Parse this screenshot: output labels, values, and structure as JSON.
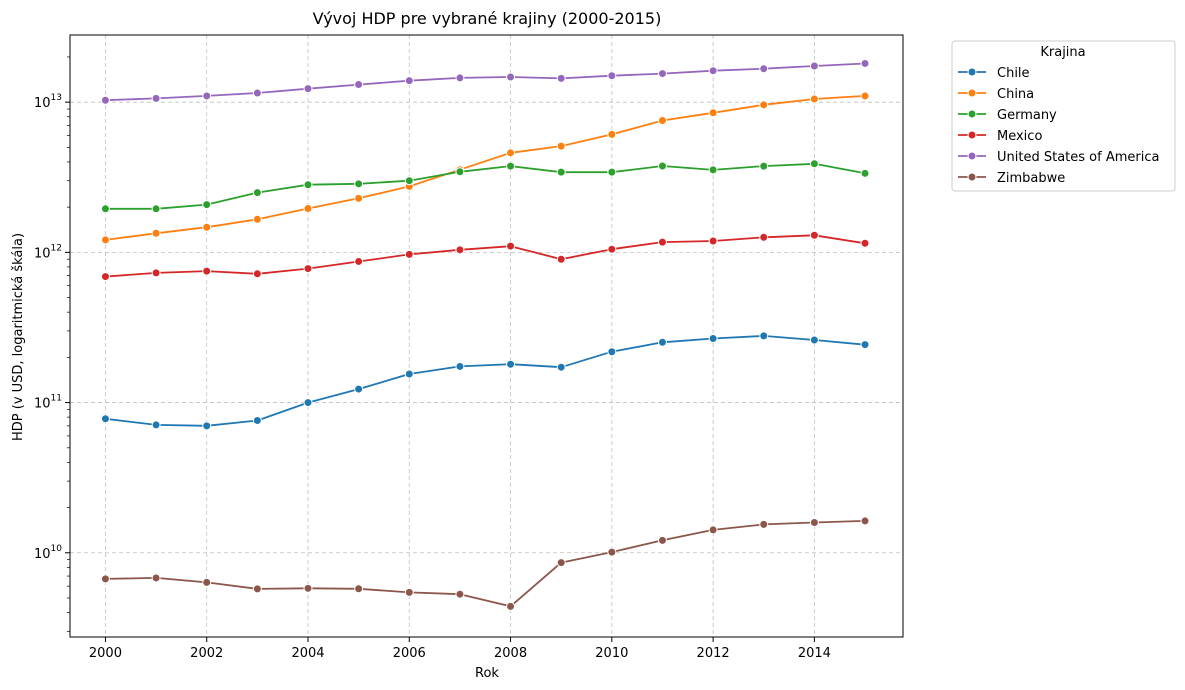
{
  "chart_data": {
    "type": "line",
    "title": "Vývoj HDP pre vybrané krajiny (2000-2015)",
    "xlabel": "Rok",
    "ylabel": "HDP (v USD, logaritmická škála)",
    "yscale": "log",
    "xlim": [
      1999.3,
      2015.75
    ],
    "ylim": [
      2750000000.0,
      28000000000000.0
    ],
    "grid": true,
    "x_ticks": [
      2000,
      2002,
      2004,
      2006,
      2008,
      2010,
      2012,
      2014
    ],
    "x_tick_labels": [
      "2000",
      "2002",
      "2004",
      "2006",
      "2008",
      "2010",
      "2012",
      "2014"
    ],
    "y_ticks": [
      10000000000.0,
      100000000000.0,
      1000000000000.0,
      10000000000000.0
    ],
    "y_tick_labels": [
      {
        "base": "10",
        "exp": "10"
      },
      {
        "base": "10",
        "exp": "11"
      },
      {
        "base": "10",
        "exp": "12"
      },
      {
        "base": "10",
        "exp": "13"
      }
    ],
    "legend": {
      "title": "Krajina",
      "placement": "outside-top-right"
    },
    "x": [
      2000,
      2001,
      2002,
      2003,
      2004,
      2005,
      2006,
      2007,
      2008,
      2009,
      2010,
      2011,
      2012,
      2013,
      2014,
      2015
    ],
    "series": [
      {
        "name": "Chile",
        "color": "#1f77b4",
        "values": [
          78000000000.0,
          71000000000.0,
          70000000000.0,
          76000000000.0,
          100000000000.0,
          123000000000.0,
          155000000000.0,
          174000000000.0,
          180000000000.0,
          172000000000.0,
          218000000000.0,
          252000000000.0,
          267000000000.0,
          278000000000.0,
          261000000000.0,
          243000000000.0
        ]
      },
      {
        "name": "China",
        "color": "#ff7f0e",
        "values": [
          1210000000000.0,
          1340000000000.0,
          1470000000000.0,
          1660000000000.0,
          1960000000000.0,
          2290000000000.0,
          2750000000000.0,
          3550000000000.0,
          4600000000000.0,
          5100000000000.0,
          6100000000000.0,
          7550000000000.0,
          8500000000000.0,
          9600000000000.0,
          10500000000000.0,
          11000000000000.0
        ]
      },
      {
        "name": "Germany",
        "color": "#2ca02c",
        "values": [
          1950000000000.0,
          1950000000000.0,
          2080000000000.0,
          2500000000000.0,
          2820000000000.0,
          2860000000000.0,
          3000000000000.0,
          3440000000000.0,
          3750000000000.0,
          3420000000000.0,
          3420000000000.0,
          3760000000000.0,
          3540000000000.0,
          3750000000000.0,
          3890000000000.0,
          3360000000000.0
        ]
      },
      {
        "name": "Mexico",
        "color": "#d62728",
        "values": [
          690000000000.0,
          730000000000.0,
          750000000000.0,
          720000000000.0,
          780000000000.0,
          870000000000.0,
          970000000000.0,
          1040000000000.0,
          1100000000000.0,
          900000000000.0,
          1050000000000.0,
          1170000000000.0,
          1190000000000.0,
          1260000000000.0,
          1300000000000.0,
          1150000000000.0
        ]
      },
      {
        "name": "United States of America",
        "color": "#9467bd",
        "values": [
          10300000000000.0,
          10600000000000.0,
          11000000000000.0,
          11500000000000.0,
          12300000000000.0,
          13100000000000.0,
          13900000000000.0,
          14500000000000.0,
          14700000000000.0,
          14400000000000.0,
          15000000000000.0,
          15500000000000.0,
          16200000000000.0,
          16700000000000.0,
          17400000000000.0,
          18100000000000.0
        ]
      },
      {
        "name": "Zimbabwe",
        "color": "#8c564b",
        "values": [
          6700000000.0,
          6800000000.0,
          6350000000.0,
          5750000000.0,
          5800000000.0,
          5760000000.0,
          5450000000.0,
          5300000000.0,
          4400000000.0,
          8600000000.0,
          10100000000.0,
          12100000000.0,
          14200000000.0,
          15450000000.0,
          15900000000.0,
          16300000000.0
        ]
      }
    ]
  }
}
